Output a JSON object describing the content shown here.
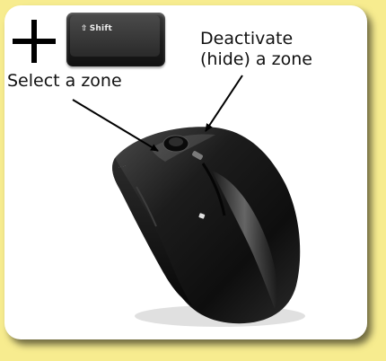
{
  "modifier": {
    "symbol": "+",
    "key_label": "Shift",
    "key_icon": "shift-arrow-icon"
  },
  "annotations": {
    "select_zone": "Select a zone",
    "deactivate_line1": "Deactivate",
    "deactivate_line2": "(hide) a zone"
  },
  "colors": {
    "background": "#f7ec8f",
    "card": "#ffffff",
    "mouse_body": "#1a1a1a"
  }
}
